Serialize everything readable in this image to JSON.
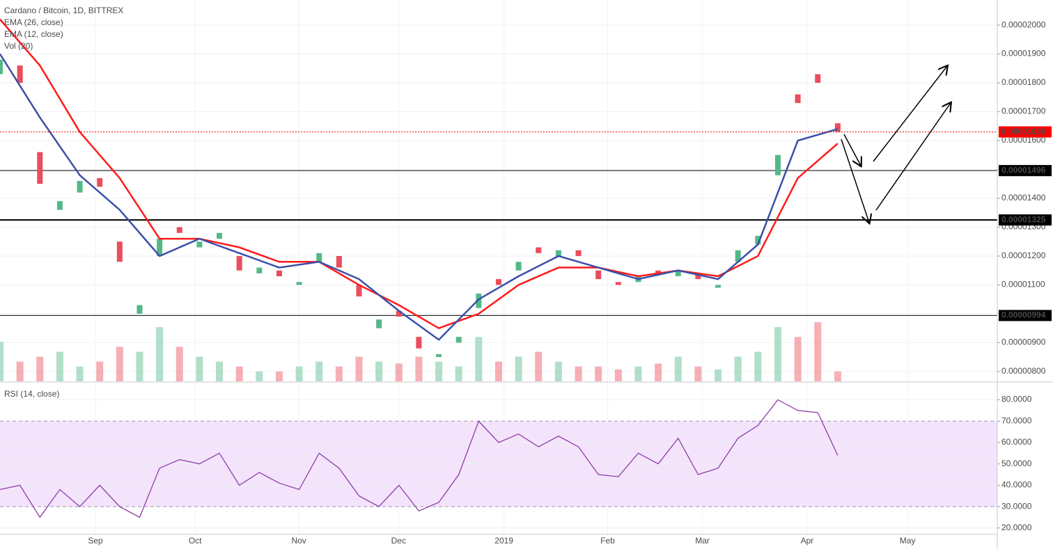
{
  "chart_data": [
    {
      "type": "candlestick",
      "title": "Cardano / Bitcoin, 1D, BITTREX",
      "x": [
        0,
        6,
        12,
        18,
        24,
        30,
        36,
        42,
        48,
        54,
        60,
        66,
        72,
        78,
        84,
        90,
        96,
        102,
        108,
        114,
        120,
        126,
        132,
        138,
        144,
        150,
        156,
        162,
        168,
        174,
        180,
        186,
        192,
        198,
        204,
        210,
        216,
        222,
        228,
        234,
        240,
        246,
        252
      ],
      "open": [
        1.83e-05,
        1.86e-05,
        1.56e-05,
        1.36e-05,
        1.42e-05,
        1.47e-05,
        1.25e-05,
        1e-05,
        1.2e-05,
        1.3e-05,
        1.23e-05,
        1.26e-05,
        1.2e-05,
        1.14e-05,
        1.15e-05,
        1.1e-05,
        1.18e-05,
        1.2e-05,
        1.1e-05,
        9.5e-06,
        1.01e-05,
        9.2e-06,
        8.5e-06,
        9e-06,
        1.02e-05,
        1.12e-05,
        1.15e-05,
        1.23e-05,
        1.2e-05,
        1.22e-05,
        1.15e-05,
        1.11e-05,
        1.11e-05,
        1.15e-05,
        1.13e-05,
        1.14e-05,
        1.09e-05,
        1.18e-05,
        1.24e-05,
        1.48e-05,
        1.76e-05,
        1.83e-05,
        1.66e-05
      ],
      "close": [
        1.88e-05,
        1.8e-05,
        1.45e-05,
        1.39e-05,
        1.46e-05,
        1.44e-05,
        1.18e-05,
        1.03e-05,
        1.26e-05,
        1.28e-05,
        1.25e-05,
        1.28e-05,
        1.15e-05,
        1.16e-05,
        1.13e-05,
        1.11e-05,
        1.21e-05,
        1.16e-05,
        1.06e-05,
        9.8e-06,
        9.9e-06,
        8.8e-06,
        8.6e-06,
        9.2e-06,
        1.07e-05,
        1.1e-05,
        1.18e-05,
        1.21e-05,
        1.22e-05,
        1.2e-05,
        1.12e-05,
        1.1e-05,
        1.13e-05,
        1.14e-05,
        1.15e-05,
        1.12e-05,
        1.1e-05,
        1.22e-05,
        1.27e-05,
        1.55e-05,
        1.73e-05,
        1.8e-05,
        1.63e-05
      ],
      "up_color": "#53b987",
      "down_color": "#eb4d5c",
      "series": [
        {
          "name": "EMA (26, close)",
          "color": "#ff1a1a",
          "x": [
            0,
            12,
            24,
            36,
            48,
            60,
            72,
            84,
            96,
            108,
            120,
            132,
            144,
            156,
            168,
            180,
            192,
            204,
            216,
            228,
            240,
            252
          ],
          "values": [
            2.02e-05,
            1.86e-05,
            1.63e-05,
            1.47e-05,
            1.26e-05,
            1.26e-05,
            1.23e-05,
            1.18e-05,
            1.18e-05,
            1.1e-05,
            1.03e-05,
            9.5e-06,
            1e-05,
            1.1e-05,
            1.16e-05,
            1.16e-05,
            1.13e-05,
            1.15e-05,
            1.13e-05,
            1.2e-05,
            1.47e-05,
            1.59e-05
          ]
        },
        {
          "name": "EMA (12, close)",
          "color": "#3a4fa8",
          "x": [
            0,
            12,
            24,
            36,
            48,
            60,
            72,
            84,
            96,
            108,
            120,
            132,
            144,
            156,
            168,
            180,
            192,
            204,
            216,
            228,
            240,
            252
          ],
          "values": [
            1.9e-05,
            1.68e-05,
            1.48e-05,
            1.36e-05,
            1.2e-05,
            1.26e-05,
            1.21e-05,
            1.16e-05,
            1.18e-05,
            1.12e-05,
            1.01e-05,
            9.1e-06,
            1.05e-05,
            1.13e-05,
            1.2e-05,
            1.16e-05,
            1.12e-05,
            1.15e-05,
            1.12e-05,
            1.24e-05,
            1.6e-05,
            1.64e-05
          ]
        }
      ],
      "volume": {
        "name": "Vol (20)",
        "values": [
          40,
          20,
          25,
          30,
          15,
          20,
          35,
          30,
          55,
          35,
          25,
          20,
          15,
          10,
          10,
          15,
          20,
          15,
          25,
          20,
          18,
          25,
          20,
          15,
          45,
          20,
          25,
          30,
          20,
          15,
          15,
          12,
          15,
          18,
          25,
          15,
          12,
          25,
          30,
          55,
          45,
          60,
          10
        ]
      },
      "levels": [
        {
          "value": 1.496e-05,
          "label": "0.00001496"
        },
        {
          "value": 1.325e-05,
          "label": "0.00001325"
        },
        {
          "value": 9.94e-06,
          "label": "0.00000994"
        }
      ],
      "last": {
        "value": 1.63e-05,
        "label": "0.00001630"
      },
      "xlim": [
        0,
        300
      ],
      "xticks": [
        {
          "value": 28.7,
          "label": "Sep"
        },
        {
          "value": 58.7,
          "label": "Oct"
        },
        {
          "value": 89.9,
          "label": "Nov"
        },
        {
          "value": 119.9,
          "label": "Dec"
        },
        {
          "value": 151.6,
          "label": "2019"
        },
        {
          "value": 182.8,
          "label": "Feb"
        },
        {
          "value": 211.3,
          "label": "Mar"
        },
        {
          "value": 242.8,
          "label": "Apr"
        },
        {
          "value": 273,
          "label": "May"
        }
      ],
      "ylim": [
        7.66e-06,
        2.087e-05
      ],
      "yticks": [
        {
          "value": 8e-06,
          "label": "0.00000800"
        },
        {
          "value": 9e-06,
          "label": "0.00000900"
        },
        {
          "value": 1e-05,
          "label": "0.00001000"
        },
        {
          "value": 1.1e-05,
          "label": "0.00001100"
        },
        {
          "value": 1.2e-05,
          "label": "0.00001200"
        },
        {
          "value": 1.3e-05,
          "label": "0.00001300"
        },
        {
          "value": 1.4e-05,
          "label": "0.00001400"
        },
        {
          "value": 1.5e-05,
          "label": "0.00001500"
        },
        {
          "value": 1.6e-05,
          "label": "0.00001600"
        },
        {
          "value": 1.7e-05,
          "label": "0.00001700"
        },
        {
          "value": 1.8e-05,
          "label": "0.00001800"
        },
        {
          "value": 1.9e-05,
          "label": "0.00001900"
        },
        {
          "value": 2e-05,
          "label": "0.00002000"
        }
      ]
    },
    {
      "type": "line",
      "title": "RSI (14, close)",
      "color": "#8e3ba8",
      "x": [
        0,
        6,
        12,
        18,
        24,
        30,
        36,
        42,
        48,
        54,
        60,
        66,
        72,
        78,
        84,
        90,
        96,
        102,
        108,
        114,
        120,
        126,
        132,
        138,
        144,
        150,
        156,
        162,
        168,
        174,
        180,
        186,
        192,
        198,
        204,
        210,
        216,
        222,
        228,
        234,
        240,
        246,
        252
      ],
      "values": [
        38,
        40,
        25,
        38,
        30,
        40,
        30,
        25,
        48,
        52,
        50,
        55,
        40,
        46,
        41,
        38,
        55,
        48,
        35,
        30,
        40,
        28,
        32,
        45,
        70,
        60,
        64,
        58,
        63,
        58,
        45,
        44,
        55,
        50,
        62,
        45,
        48,
        62,
        68,
        80,
        75,
        74,
        54
      ],
      "band": [
        30,
        70
      ],
      "ylim": [
        17,
        88
      ],
      "yticks": [
        {
          "value": 20,
          "label": "20.0000"
        },
        {
          "value": 30,
          "label": "30.0000"
        },
        {
          "value": 40,
          "label": "40.0000"
        },
        {
          "value": 50,
          "label": "50.0000"
        },
        {
          "value": 60,
          "label": "60.0000"
        },
        {
          "value": 70,
          "label": "70.0000"
        },
        {
          "value": 80,
          "label": "80.0000"
        }
      ]
    }
  ]
}
